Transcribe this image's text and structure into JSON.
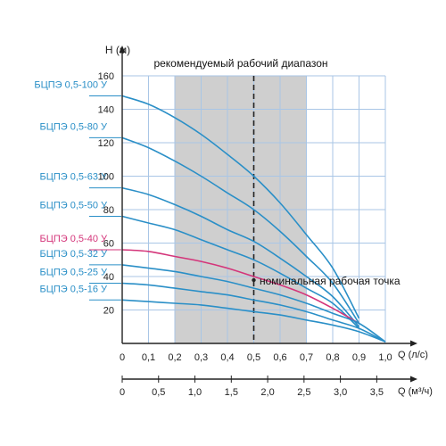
{
  "chart_data": {
    "type": "line",
    "ylabel": "H (м)",
    "range_label": "рекомендуемый рабочий диапазон",
    "point_label": "номинальная рабочая точка",
    "x_axis": {
      "label": "Q (л/с)",
      "ticks": [
        "0",
        "0,1",
        "0,2",
        "0,3",
        "0,4",
        "0,5",
        "0,6",
        "0,7",
        "0,8",
        "0,9",
        "1,0"
      ],
      "range": [
        0,
        1.0
      ]
    },
    "x2_axis": {
      "label": "Q (м³/ч)",
      "ticks": [
        "0",
        "0,5",
        "1,0",
        "1,5",
        "2,0",
        "2,5",
        "3,0",
        "3,5"
      ],
      "range": [
        0,
        3.6
      ]
    },
    "y_axis": {
      "ticks": [
        "20",
        "40",
        "60",
        "80",
        "100",
        "120",
        "140",
        "160"
      ],
      "range": [
        0,
        160
      ]
    },
    "recommended_range": [
      0.2,
      0.7
    ],
    "nominal_point_x": 0.5,
    "grid": true,
    "colors": {
      "series": "#2a8fc7",
      "highlight": "#d4357a",
      "band": "#cfcfcf",
      "grid": "#a9c6e6"
    },
    "series": [
      {
        "name": "БЦПЭ 0,5-100 У",
        "highlight": false,
        "x": [
          0,
          0.1,
          0.2,
          0.3,
          0.4,
          0.5,
          0.6,
          0.7,
          0.8,
          0.9
        ],
        "y": [
          148,
          143,
          135,
          125,
          113,
          100,
          84,
          65,
          45,
          15
        ]
      },
      {
        "name": "БЦПЭ 0,5-80 У",
        "highlight": false,
        "x": [
          0,
          0.1,
          0.2,
          0.3,
          0.4,
          0.5,
          0.6,
          0.7,
          0.8,
          0.9
        ],
        "y": [
          123,
          117,
          109,
          100,
          90,
          80,
          67,
          52,
          36,
          12
        ]
      },
      {
        "name": "БЦПЭ 0,5-63 У",
        "highlight": false,
        "x": [
          0,
          0.1,
          0.2,
          0.3,
          0.4,
          0.5,
          0.6,
          0.7,
          0.8,
          0.9
        ],
        "y": [
          93,
          89,
          83,
          76,
          68,
          61,
          51,
          40,
          28,
          10
        ]
      },
      {
        "name": "БЦПЭ 0,5-50 У",
        "highlight": false,
        "x": [
          0,
          0.1,
          0.2,
          0.3,
          0.4,
          0.5,
          0.6,
          0.7,
          0.8,
          0.9
        ],
        "y": [
          76,
          72,
          68,
          62,
          56,
          50,
          42,
          33,
          24,
          9
        ]
      },
      {
        "name": "БЦПЭ 0,5-40 У",
        "highlight": true,
        "x": [
          0,
          0.1,
          0.2,
          0.3,
          0.4,
          0.5,
          0.6,
          0.7,
          0.8,
          0.9
        ],
        "y": [
          56,
          55,
          52,
          49,
          45,
          40,
          35,
          29,
          21,
          12
        ]
      },
      {
        "name": "БЦПЭ 0,5-32 У",
        "highlight": false,
        "x": [
          0,
          0.1,
          0.2,
          0.3,
          0.4,
          0.5,
          0.6,
          0.7,
          0.8,
          0.9,
          1.0
        ],
        "y": [
          47,
          45,
          43,
          40,
          37,
          33,
          29,
          24,
          18,
          12,
          1
        ]
      },
      {
        "name": "БЦПЭ 0,5-25 У",
        "highlight": false,
        "x": [
          0,
          0.1,
          0.2,
          0.3,
          0.4,
          0.5,
          0.6,
          0.7,
          0.8,
          0.9,
          1.0
        ],
        "y": [
          36,
          35,
          33,
          31,
          29,
          26,
          23,
          19,
          14,
          9,
          1
        ]
      },
      {
        "name": "БЦПЭ 0,5-16 У",
        "highlight": false,
        "x": [
          0,
          0.1,
          0.2,
          0.3,
          0.4,
          0.5,
          0.6,
          0.7,
          0.8,
          0.9,
          1.0
        ],
        "y": [
          26,
          25,
          24,
          23,
          21,
          19,
          17,
          14,
          11,
          7,
          1
        ]
      }
    ]
  }
}
